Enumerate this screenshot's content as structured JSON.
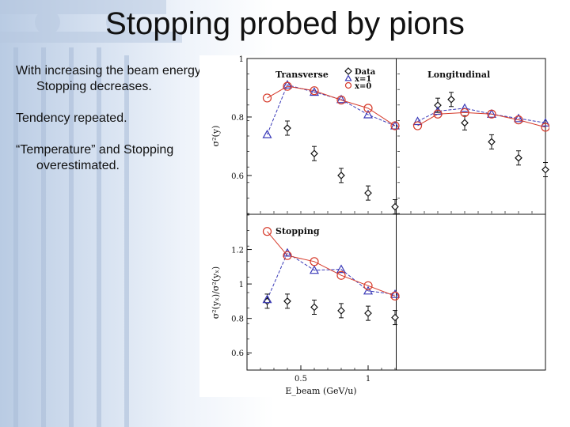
{
  "slide": {
    "title": "Stopping probed by pions",
    "bullets": [
      "With increasing the beam energy, Stopping decreases.",
      "Tendency repeated.",
      "“Temperature” and Stopping overestimated."
    ]
  },
  "colors": {
    "data": "#111111",
    "x1": "#3a3ab8",
    "x0": "#d63a2a",
    "background_gradient": "#b9cbe3"
  },
  "icons": [
    "diamond-marker-icon",
    "triangle-marker-icon",
    "circle-marker-icon"
  ],
  "chart_data": [
    {
      "type": "scatter",
      "title": "Transverse",
      "ylabel": "σ²(y)",
      "ylim": [
        0.47,
        1.0
      ],
      "yticks": [
        0.6,
        0.8,
        1.0
      ],
      "ytick_labels": [
        "0.6",
        "0.8",
        "1"
      ],
      "xlim": [
        0.1,
        1.2
      ],
      "legend": {
        "position": "top-right",
        "entries": [
          "Data",
          "x=1",
          "x=0"
        ]
      },
      "series": [
        {
          "name": "Data",
          "marker": "diamond",
          "x": [
            0.4,
            0.6,
            0.8,
            1.0,
            1.2
          ],
          "y": [
            0.762,
            0.675,
            0.6,
            0.54,
            0.493
          ]
        },
        {
          "name": "x=1",
          "marker": "triangle",
          "line": "dashed",
          "x": [
            0.25,
            0.4,
            0.6,
            0.8,
            1.0,
            1.2
          ],
          "y": [
            0.74,
            0.91,
            0.885,
            0.86,
            0.808,
            0.77
          ]
        },
        {
          "name": "x=0",
          "marker": "circle",
          "line": "solid",
          "x": [
            0.25,
            0.4,
            0.6,
            0.8,
            1.0,
            1.2
          ],
          "y": [
            0.865,
            0.905,
            0.89,
            0.858,
            0.83,
            0.77
          ]
        }
      ]
    },
    {
      "type": "scatter",
      "title": "Longitudinal",
      "ylim": [
        0.47,
        1.0
      ],
      "xlim": [
        0.1,
        1.2
      ],
      "series": [
        {
          "name": "Data",
          "marker": "diamond",
          "x": [
            0.4,
            0.5,
            0.6,
            0.8,
            1.0,
            1.2
          ],
          "y": [
            0.84,
            0.86,
            0.78,
            0.715,
            0.66,
            0.62
          ]
        },
        {
          "name": "x=1",
          "marker": "triangle",
          "line": "dashed",
          "x": [
            0.25,
            0.4,
            0.6,
            0.8,
            1.0,
            1.2
          ],
          "y": [
            0.785,
            0.82,
            0.83,
            0.81,
            0.795,
            0.78
          ]
        },
        {
          "name": "x=0",
          "marker": "circle",
          "line": "solid",
          "x": [
            0.25,
            0.4,
            0.6,
            0.8,
            1.0,
            1.2
          ],
          "y": [
            0.77,
            0.81,
            0.815,
            0.81,
            0.79,
            0.765
          ]
        }
      ]
    },
    {
      "type": "scatter",
      "title": "Stopping",
      "ylabel": "σ²(yₓ)/σ²(yₓ)",
      "xlabel": "E_beam (GeV/u)",
      "ylim": [
        0.5,
        1.4
      ],
      "yticks": [
        0.6,
        0.8,
        1.0,
        1.2
      ],
      "ytick_labels": [
        "0.6",
        "0.8",
        "1",
        "1.2"
      ],
      "xlim": [
        0.1,
        1.2
      ],
      "xticks": [
        0.5,
        1.0
      ],
      "xtick_labels": [
        "0.5",
        "1"
      ],
      "series": [
        {
          "name": "Data",
          "marker": "diamond",
          "x": [
            0.25,
            0.4,
            0.6,
            0.8,
            1.0,
            1.2
          ],
          "y": [
            0.9,
            0.9,
            0.865,
            0.845,
            0.83,
            0.805
          ]
        },
        {
          "name": "x=1",
          "marker": "triangle",
          "line": "dashed",
          "x": [
            0.25,
            0.4,
            0.6,
            0.8,
            1.0,
            1.2
          ],
          "y": [
            0.91,
            1.18,
            1.08,
            1.085,
            0.96,
            0.94
          ]
        },
        {
          "name": "x=0",
          "marker": "circle",
          "line": "solid",
          "x": [
            0.25,
            0.4,
            0.6,
            0.8,
            1.0,
            1.2
          ],
          "y": [
            1.305,
            1.165,
            1.13,
            1.05,
            0.99,
            0.93
          ]
        }
      ]
    }
  ]
}
